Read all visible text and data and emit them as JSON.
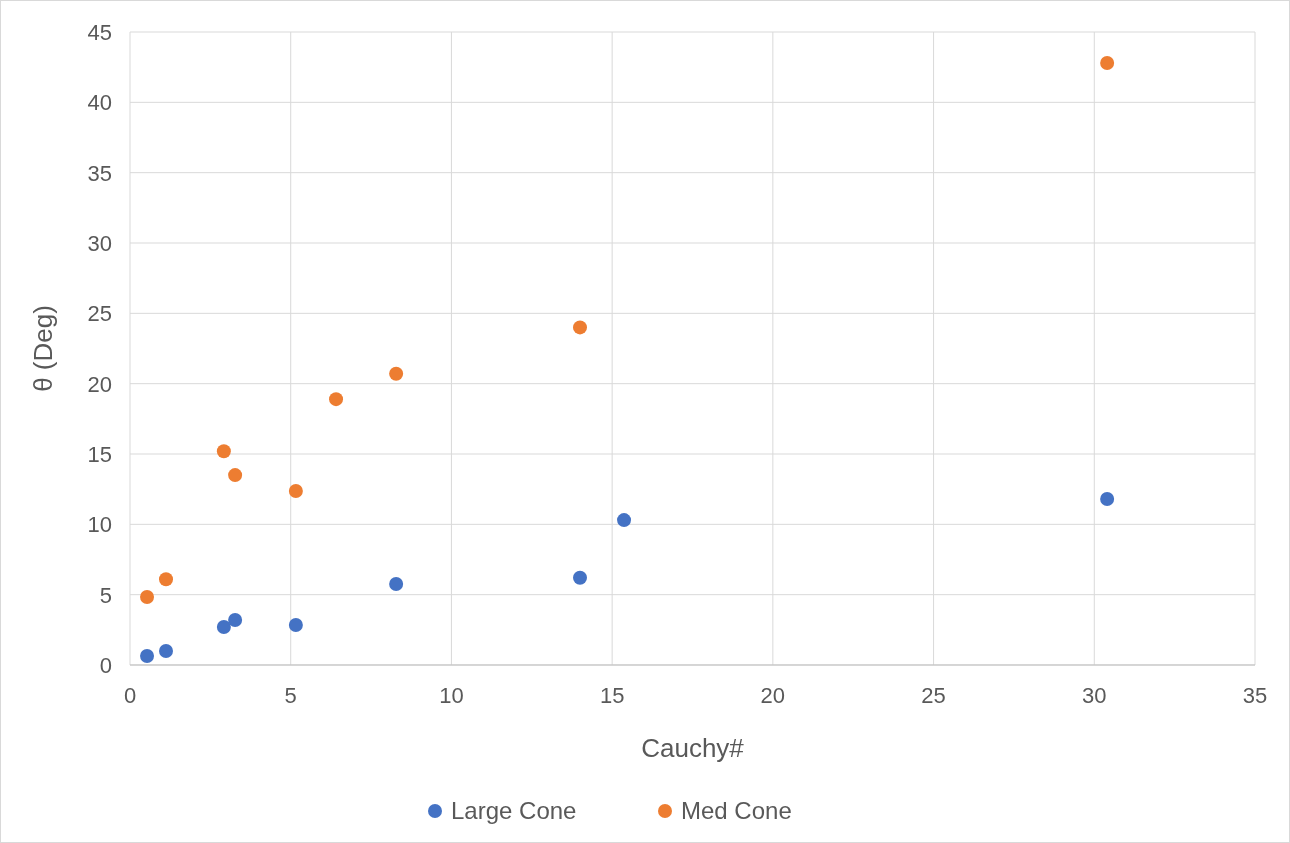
{
  "chart_data": {
    "type": "scatter",
    "xlabel": "Cauchy#",
    "ylabel": "θ (Deg)",
    "xlim": [
      0,
      35
    ],
    "xticks": [
      0,
      5,
      10,
      15,
      20,
      25,
      30,
      35
    ],
    "ylim": [
      0,
      45
    ],
    "yticks": [
      0,
      5,
      10,
      15,
      20,
      25,
      30,
      35,
      40,
      45
    ],
    "grid": true,
    "legend": "bottom",
    "marker": "circle",
    "series": [
      {
        "name": "Large Cone",
        "color": "#4472c4",
        "x": [
          0.53,
          1.12,
          2.92,
          3.27,
          5.16,
          8.28,
          14.0,
          15.37,
          30.4
        ],
        "values": [
          0.64,
          1.0,
          2.7,
          3.2,
          2.84,
          5.76,
          6.2,
          10.3,
          11.8
        ]
      },
      {
        "name": "Med Cone",
        "color": "#ed7d31",
        "x": [
          0.53,
          1.12,
          2.92,
          3.27,
          5.16,
          6.41,
          8.28,
          14.0,
          30.4
        ],
        "values": [
          4.83,
          6.1,
          15.2,
          13.5,
          12.37,
          18.9,
          20.7,
          24.0,
          42.8
        ]
      }
    ]
  }
}
